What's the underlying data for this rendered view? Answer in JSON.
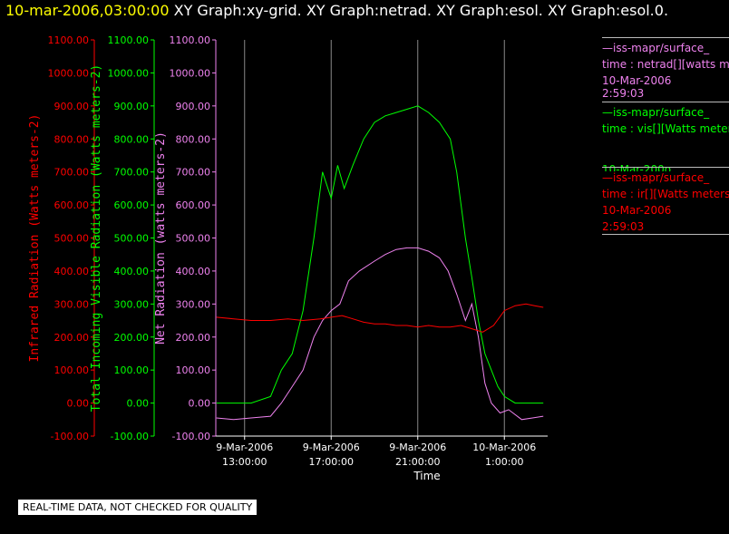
{
  "header": {
    "datetime": "10-mar-2006,03:00:00",
    "graphs": "XY Graph:xy-grid.  XY Graph:netrad.  XY Graph:esol.  XY Graph:esol.0."
  },
  "legend": {
    "netrad": {
      "line1": "—iss-mapr/surface_",
      "line2": "time : netrad[][watts m",
      "line3": "10-Mar-2006",
      "line4": "2:59:03",
      "color": "#ee82ee"
    },
    "vis": {
      "line1": "—iss-mapr/surface_",
      "line2": "time : vis[][Watts meter",
      "line3": "10-Mar-200o",
      "color": "#00ff00"
    },
    "ir": {
      "line1": "—iss-mapr/surface_",
      "line2": "time : ir[][Watts meters",
      "line3": "10-Mar-2006",
      "line4": "2:59:03",
      "color": "#ff0000"
    }
  },
  "footer": {
    "note": "REAL-TIME DATA, NOT CHECKED FOR QUALITY"
  },
  "chart_data": {
    "type": "line",
    "xlabel": "Time",
    "x_ticks": [
      {
        "line1": "9-Mar-2006",
        "line2": "13:00:00",
        "hours": 13
      },
      {
        "line1": "9-Mar-2006",
        "line2": "17:00:00",
        "hours": 17
      },
      {
        "line1": "9-Mar-2006",
        "line2": "21:00:00",
        "hours": 21
      },
      {
        "line1": "10-Mar-2006",
        "line2": "1:00:00",
        "hours": 25
      }
    ],
    "xlim": [
      "9-Mar-2006 11:40",
      "10-Mar-2006 3:00"
    ],
    "grid": "vertical",
    "y_axes": [
      {
        "label": "Infrared Radiation (Watts meters-2)",
        "color": "#ff0000",
        "ylim": [
          -100,
          1100
        ],
        "ticks": [
          "1100.00",
          "1000.00",
          "900.00",
          "800.00",
          "700.00",
          "600.00",
          "500.00",
          "400.00",
          "300.00",
          "200.00",
          "100.00",
          "0.00",
          "-100.00"
        ]
      },
      {
        "label": "Total Incoming Visible Radiation (Watts meters-2)",
        "color": "#00ff00",
        "ylim": [
          -100,
          1100
        ],
        "ticks": [
          "1100.00",
          "1000.00",
          "900.00",
          "800.00",
          "700.00",
          "600.00",
          "500.00",
          "400.00",
          "300.00",
          "200.00",
          "100.00",
          "0.00",
          "-100.00"
        ]
      },
      {
        "label": "Net Radiation (watts meters-2)",
        "color": "#ee82ee",
        "ylim": [
          -100,
          1100
        ],
        "ticks": [
          "1100.00",
          "1000.00",
          "900.00",
          "800.00",
          "700.00",
          "600.00",
          "500.00",
          "400.00",
          "300.00",
          "200.00",
          "100.00",
          "0.00",
          "-100.00"
        ]
      }
    ],
    "series": [
      {
        "name": "vis",
        "color": "#00ff00",
        "points": [
          [
            11.7,
            0
          ],
          [
            12.5,
            0
          ],
          [
            13.3,
            0
          ],
          [
            14.2,
            20
          ],
          [
            14.7,
            100
          ],
          [
            15.2,
            150
          ],
          [
            15.7,
            280
          ],
          [
            16.2,
            500
          ],
          [
            16.6,
            700
          ],
          [
            17.0,
            620
          ],
          [
            17.3,
            720
          ],
          [
            17.6,
            650
          ],
          [
            18.0,
            720
          ],
          [
            18.5,
            800
          ],
          [
            19.0,
            850
          ],
          [
            19.5,
            870
          ],
          [
            20.0,
            880
          ],
          [
            20.5,
            890
          ],
          [
            21.0,
            900
          ],
          [
            21.5,
            880
          ],
          [
            22.0,
            850
          ],
          [
            22.5,
            800
          ],
          [
            22.8,
            700
          ],
          [
            23.0,
            600
          ],
          [
            23.2,
            500
          ],
          [
            23.5,
            380
          ],
          [
            23.8,
            250
          ],
          [
            24.1,
            150
          ],
          [
            24.4,
            100
          ],
          [
            24.7,
            50
          ],
          [
            25.0,
            20
          ],
          [
            25.5,
            0
          ],
          [
            26.2,
            0
          ],
          [
            26.8,
            0
          ]
        ]
      },
      {
        "name": "netrad",
        "color": "#ee82ee",
        "points": [
          [
            11.7,
            -45
          ],
          [
            12.5,
            -50
          ],
          [
            13.3,
            -45
          ],
          [
            14.2,
            -40
          ],
          [
            14.7,
            0
          ],
          [
            15.2,
            50
          ],
          [
            15.7,
            100
          ],
          [
            16.2,
            200
          ],
          [
            16.6,
            250
          ],
          [
            17.0,
            280
          ],
          [
            17.4,
            300
          ],
          [
            17.8,
            370
          ],
          [
            18.3,
            400
          ],
          [
            19.0,
            430
          ],
          [
            19.5,
            450
          ],
          [
            20.0,
            465
          ],
          [
            20.5,
            470
          ],
          [
            21.0,
            470
          ],
          [
            21.5,
            460
          ],
          [
            22.0,
            440
          ],
          [
            22.4,
            400
          ],
          [
            22.8,
            330
          ],
          [
            23.2,
            250
          ],
          [
            23.5,
            300
          ],
          [
            23.8,
            200
          ],
          [
            24.1,
            60
          ],
          [
            24.4,
            0
          ],
          [
            24.8,
            -30
          ],
          [
            25.2,
            -20
          ],
          [
            25.8,
            -50
          ],
          [
            26.3,
            -45
          ],
          [
            26.8,
            -40
          ]
        ]
      },
      {
        "name": "ir",
        "color": "#ff0000",
        "points": [
          [
            11.7,
            260
          ],
          [
            12.5,
            255
          ],
          [
            13.3,
            250
          ],
          [
            14.2,
            250
          ],
          [
            15.0,
            255
          ],
          [
            15.7,
            250
          ],
          [
            16.5,
            255
          ],
          [
            17.0,
            260
          ],
          [
            17.5,
            265
          ],
          [
            18.0,
            255
          ],
          [
            18.5,
            245
          ],
          [
            19.0,
            240
          ],
          [
            19.5,
            240
          ],
          [
            20.0,
            235
          ],
          [
            20.5,
            235
          ],
          [
            21.0,
            230
          ],
          [
            21.5,
            235
          ],
          [
            22.0,
            230
          ],
          [
            22.5,
            230
          ],
          [
            23.0,
            235
          ],
          [
            23.5,
            225
          ],
          [
            24.0,
            215
          ],
          [
            24.5,
            235
          ],
          [
            25.0,
            280
          ],
          [
            25.5,
            295
          ],
          [
            26.0,
            300
          ],
          [
            26.4,
            295
          ],
          [
            26.8,
            290
          ]
        ]
      }
    ]
  }
}
